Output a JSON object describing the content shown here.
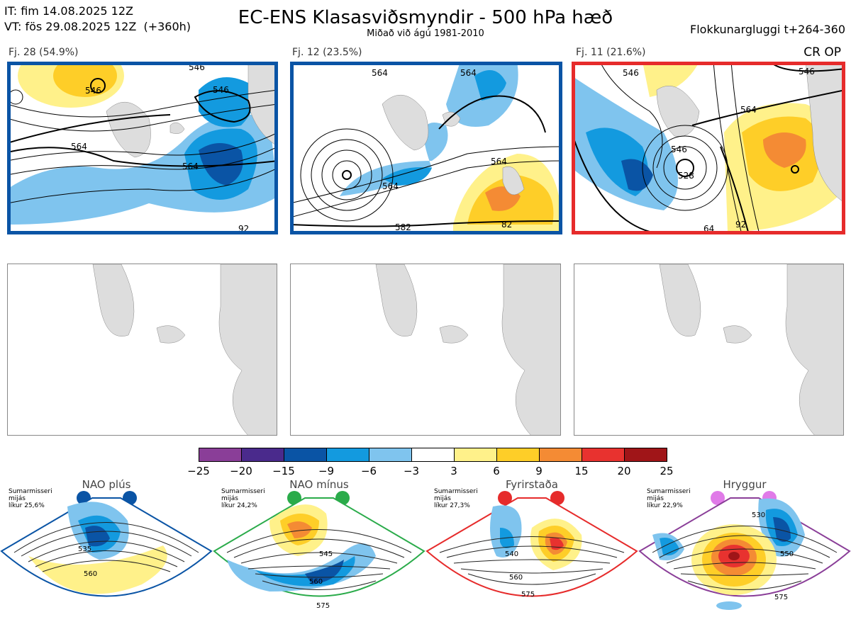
{
  "header": {
    "init_time": "IT: fim 14.08.2025 12Z",
    "valid_time": "VT: fös 29.08.2025 12Z  (+360h)",
    "title": "EC-ENS Klasasviðsmyndir - 500 hPa hæð",
    "subtitle": "Miðað við ágú 1981-2010",
    "window": "Flokkunargluggi t+264-360",
    "cr_op": "CR OP"
  },
  "clusters": [
    {
      "label": "Fj. 28 (54.9%)",
      "frame_color": "#0a54a5",
      "contours": [
        "546",
        "546",
        "546",
        "564",
        "564",
        "92"
      ]
    },
    {
      "label": "Fj. 12 (23.5%)",
      "frame_color": "#0a54a5",
      "contours": [
        "564",
        "564",
        "564",
        "564",
        "582",
        "82"
      ]
    },
    {
      "label": "Fj. 11 (21.6%)",
      "frame_color": "#e62b2b",
      "contours": [
        "546",
        "546",
        "564",
        "546",
        "528",
        "92",
        "64"
      ]
    }
  ],
  "colorbar": {
    "ticks": [
      "−25",
      "−20",
      "−15",
      "−9",
      "−6",
      "−3",
      "3",
      "6",
      "9",
      "15",
      "20",
      "25"
    ],
    "colors": [
      "#8a3e98",
      "#4a2a8c",
      "#0a54a5",
      "#139adf",
      "#7fc4ee",
      "#ffffff",
      "#fff18a",
      "#fece28",
      "#f48b34",
      "#e8322f",
      "#a01518"
    ]
  },
  "regimes": [
    {
      "name": "NAO plús",
      "note": "Sumarmisseri\nmijás\nlíkur 25,6%",
      "color": "#0a54a5",
      "contours": [
        "535",
        "560"
      ]
    },
    {
      "name": "NAO mínus",
      "note": "Sumarmisseri\nmijás\nlíkur 24,2%",
      "color": "#2aab4a",
      "contours": [
        "545",
        "560",
        "575"
      ]
    },
    {
      "name": "Fyrirstaða",
      "note": "Sumarmisseri\nmijás\nlíkur 27,3%",
      "color": "#e62b2b",
      "contours": [
        "540",
        "560",
        "575"
      ]
    },
    {
      "name": "Hryggur",
      "note": "Sumarmisseri\nmijás\nlíkur 22,9%",
      "color": "#e07ae8",
      "contours": [
        "530",
        "550",
        "575"
      ]
    }
  ]
}
